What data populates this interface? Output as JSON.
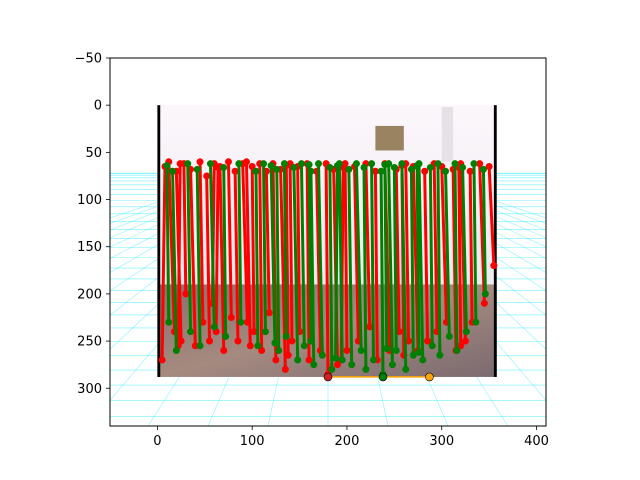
{
  "chart_data": {
    "type": "scatter",
    "title": "",
    "xlabel": "",
    "ylabel": "",
    "xlim": [
      -50,
      410
    ],
    "ylim": [
      340,
      -50
    ],
    "y_inverted": true,
    "xticks": [
      0,
      100,
      200,
      300,
      400
    ],
    "yticks": [
      -50,
      0,
      50,
      100,
      150,
      200,
      250,
      300
    ],
    "grid": false,
    "legend": "none",
    "background_image": {
      "description": "photo of an indoor room with a patterned rug",
      "extent_x": [
        0,
        358
      ],
      "extent_y": [
        0,
        288
      ]
    },
    "colors": {
      "red_series": "#ff0000",
      "green_series": "#008000",
      "orange_series": "#ffa500",
      "floor_grid": "#00e5ff",
      "photo_border": "#000000"
    },
    "series": [
      {
        "color": "red",
        "lines": [
          [
            [
              8,
              65
            ],
            [
              5,
              270
            ]
          ],
          [
            [
              12,
              60
            ],
            [
              18,
              240
            ]
          ],
          [
            [
              20,
              70
            ],
            [
              25,
              250
            ]
          ],
          [
            [
              28,
              62
            ],
            [
              30,
              200
            ]
          ],
          [
            [
              35,
              68
            ],
            [
              40,
              255
            ]
          ],
          [
            [
              45,
              60
            ],
            [
              48,
              230
            ]
          ],
          [
            [
              52,
              75
            ],
            [
              55,
              250
            ]
          ],
          [
            [
              60,
              62
            ],
            [
              58,
              210
            ]
          ],
          [
            [
              66,
              65
            ],
            [
              70,
              260
            ]
          ],
          [
            [
              75,
              60
            ],
            [
              78,
              225
            ]
          ],
          [
            [
              82,
              70
            ],
            [
              85,
              250
            ]
          ],
          [
            [
              90,
              62
            ],
            [
              95,
              230
            ]
          ],
          [
            [
              100,
              65
            ],
            [
              102,
              240
            ]
          ],
          [
            [
              108,
              62
            ],
            [
              110,
              260
            ]
          ],
          [
            [
              115,
              70
            ],
            [
              118,
              220
            ]
          ],
          [
            [
              122,
              62
            ],
            [
              125,
              270
            ]
          ],
          [
            [
              130,
              68
            ],
            [
              135,
              280
            ]
          ],
          [
            [
              140,
              62
            ],
            [
              142,
              250
            ]
          ],
          [
            [
              148,
              65
            ],
            [
              150,
              240
            ]
          ],
          [
            [
              158,
              62
            ],
            [
              160,
              270
            ]
          ],
          [
            [
              168,
              70
            ],
            [
              172,
              260
            ]
          ],
          [
            [
              178,
              62
            ],
            [
              180,
              285
            ]
          ],
          [
            [
              186,
              68
            ],
            [
              190,
              275
            ]
          ],
          [
            [
              198,
              62
            ],
            [
              200,
              260
            ]
          ],
          [
            [
              208,
              65
            ],
            [
              212,
              250
            ]
          ],
          [
            [
              220,
              62
            ],
            [
              224,
              235
            ]
          ],
          [
            [
              230,
              70
            ],
            [
              232,
              270
            ]
          ],
          [
            [
              240,
              62
            ],
            [
              245,
              260
            ]
          ],
          [
            [
              252,
              68
            ],
            [
              255,
              240
            ]
          ],
          [
            [
              262,
              62
            ],
            [
              265,
              250
            ]
          ],
          [
            [
              270,
              65
            ],
            [
              275,
              260
            ]
          ],
          [
            [
              282,
              70
            ],
            [
              285,
              250
            ]
          ],
          [
            [
              292,
              62
            ],
            [
              295,
              240
            ]
          ],
          [
            [
              300,
              65
            ],
            [
              305,
              230
            ]
          ],
          [
            [
              312,
              68
            ],
            [
              315,
              260
            ]
          ],
          [
            [
              320,
              62
            ],
            [
              325,
              250
            ]
          ],
          [
            [
              330,
              70
            ],
            [
              332,
              230
            ]
          ],
          [
            [
              340,
              62
            ],
            [
              345,
              210
            ]
          ],
          [
            [
              350,
              65
            ],
            [
              355,
              170
            ]
          ],
          [
            [
              24,
              62
            ],
            [
              22,
              255
            ]
          ],
          [
            [
              64,
              66
            ],
            [
              62,
              240
            ]
          ],
          [
            [
              94,
              60
            ],
            [
              98,
              255
            ]
          ],
          [
            [
              136,
              64
            ],
            [
              138,
              265
            ]
          ],
          [
            [
              196,
              66
            ],
            [
              194,
              270
            ]
          ],
          [
            [
              258,
              64
            ],
            [
              260,
              265
            ]
          ],
          [
            [
              318,
              66
            ],
            [
              320,
              255
            ]
          ]
        ]
      },
      {
        "color": "green",
        "lines": [
          [
            [
              10,
              64
            ],
            [
              12,
              230
            ]
          ],
          [
            [
              16,
              70
            ],
            [
              20,
              260
            ]
          ],
          [
            [
              32,
              62
            ],
            [
              35,
              240
            ]
          ],
          [
            [
              42,
              68
            ],
            [
              45,
              255
            ]
          ],
          [
            [
              56,
              62
            ],
            [
              60,
              235
            ]
          ],
          [
            [
              70,
              66
            ],
            [
              72,
              245
            ]
          ],
          [
            [
              86,
              62
            ],
            [
              88,
              230
            ]
          ],
          [
            [
              104,
              70
            ],
            [
              106,
              255
            ]
          ],
          [
            [
              112,
              62
            ],
            [
              114,
              240
            ]
          ],
          [
            [
              126,
              68
            ],
            [
              128,
              260
            ]
          ],
          [
            [
              134,
              62
            ],
            [
              136,
              245
            ]
          ],
          [
            [
              144,
              66
            ],
            [
              148,
              270
            ]
          ],
          [
            [
              152,
              62
            ],
            [
              155,
              255
            ]
          ],
          [
            [
              162,
              70
            ],
            [
              165,
              275
            ]
          ],
          [
            [
              170,
              62
            ],
            [
              174,
              265
            ]
          ],
          [
            [
              182,
              66
            ],
            [
              184,
              280
            ]
          ],
          [
            [
              192,
              62
            ],
            [
              195,
              270
            ]
          ],
          [
            [
              202,
              68
            ],
            [
              205,
              275
            ]
          ],
          [
            [
              210,
              62
            ],
            [
              215,
              260
            ]
          ],
          [
            [
              218,
              66
            ],
            [
              220,
              280
            ]
          ],
          [
            [
              226,
              62
            ],
            [
              228,
              270
            ]
          ],
          [
            [
              236,
              70
            ],
            [
              238,
              285
            ]
          ],
          [
            [
              244,
              62
            ],
            [
              248,
              275
            ]
          ],
          [
            [
              250,
              66
            ],
            [
              252,
              260
            ]
          ],
          [
            [
              258,
              62
            ],
            [
              262,
              280
            ]
          ],
          [
            [
              268,
              68
            ],
            [
              270,
              265
            ]
          ],
          [
            [
              276,
              62
            ],
            [
              280,
              270
            ]
          ],
          [
            [
              288,
              66
            ],
            [
              290,
              255
            ]
          ],
          [
            [
              296,
              62
            ],
            [
              298,
              265
            ]
          ],
          [
            [
              304,
              70
            ],
            [
              308,
              245
            ]
          ],
          [
            [
              314,
              62
            ],
            [
              316,
              260
            ]
          ],
          [
            [
              322,
              66
            ],
            [
              326,
              240
            ]
          ],
          [
            [
              334,
              62
            ],
            [
              336,
              230
            ]
          ],
          [
            [
              344,
              68
            ],
            [
              346,
              200
            ]
          ],
          [
            [
              160,
              63
            ],
            [
              162,
              250
            ]
          ],
          [
            [
              240,
              63
            ],
            [
              242,
              258
            ]
          ],
          [
            [
              120,
              64
            ],
            [
              124,
              252
            ]
          ],
          [
            [
              190,
              64
            ],
            [
              188,
              268
            ]
          ],
          [
            [
              274,
              64
            ],
            [
              276,
              262
            ]
          ]
        ]
      },
      {
        "color": "orange",
        "lines": [
          [
            [
              180,
              288
            ],
            [
              287,
              288
            ]
          ]
        ]
      }
    ],
    "highlight_points": [
      {
        "x": 180,
        "y": 288,
        "color": "#cc2222"
      },
      {
        "x": 238,
        "y": 288,
        "color": "#008000"
      },
      {
        "x": 287,
        "y": 288,
        "color": "#ffa500"
      }
    ]
  }
}
